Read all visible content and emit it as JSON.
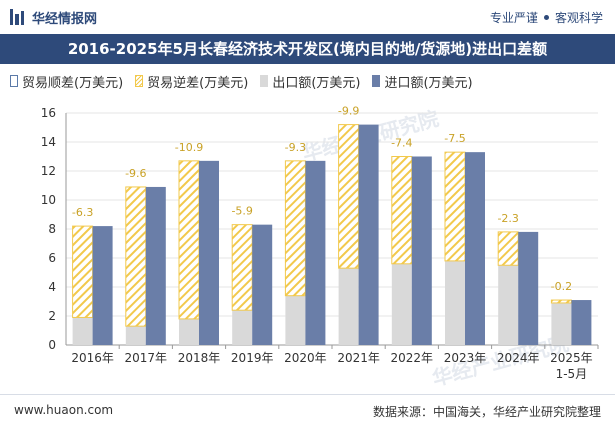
{
  "header": {
    "brand": "华经情报网",
    "tagline_left": "专业严谨",
    "tagline_right": "客观科学"
  },
  "title": "2016-2025年5月长春经济技术开发区(境内目的地/货源地)进出口差额",
  "legend": {
    "surplus": "贸易顺差(万美元)",
    "deficit": "贸易逆差(万美元)",
    "export": "出口额(万美元)",
    "import": "进口额(万美元)"
  },
  "watermark": "华经产业研究院",
  "footer": {
    "site": "www.huaon.com",
    "source": "数据来源：中国海关，华经产业研究院整理"
  },
  "colors": {
    "brand": "#2e4a7a",
    "import": "#6a7ea8",
    "export": "#d9d9d9",
    "deficit": "#f2c94c"
  },
  "chart_data": {
    "type": "bar",
    "categories": [
      "2016年",
      "2017年",
      "2018年",
      "2019年",
      "2020年",
      "2021年",
      "2022年",
      "2023年",
      "2024年",
      "2025年\n1-5月"
    ],
    "ylim": [
      0,
      16
    ],
    "yticks": [
      0,
      2,
      4,
      6,
      8,
      10,
      12,
      14,
      16
    ],
    "series": [
      {
        "name": "出口额(万美元)",
        "values": [
          1.9,
          1.3,
          1.8,
          2.4,
          3.4,
          5.3,
          5.6,
          5.8,
          5.5,
          2.9
        ]
      },
      {
        "name": "进口额(万美元)",
        "values": [
          8.2,
          10.9,
          12.7,
          8.3,
          12.7,
          15.2,
          13.0,
          13.3,
          7.8,
          3.1
        ]
      },
      {
        "name": "贸易逆差(万美元)",
        "values": [
          -6.3,
          -9.6,
          -10.9,
          -5.9,
          -9.3,
          -9.9,
          -7.4,
          -7.5,
          -2.3,
          -0.2
        ]
      }
    ],
    "data_labels": [
      "-6.3",
      "-9.6",
      "-10.9",
      "-5.9",
      "-9.3",
      "-9.9",
      "-7.4",
      "-7.5",
      "-2.3",
      "-0.2"
    ]
  }
}
